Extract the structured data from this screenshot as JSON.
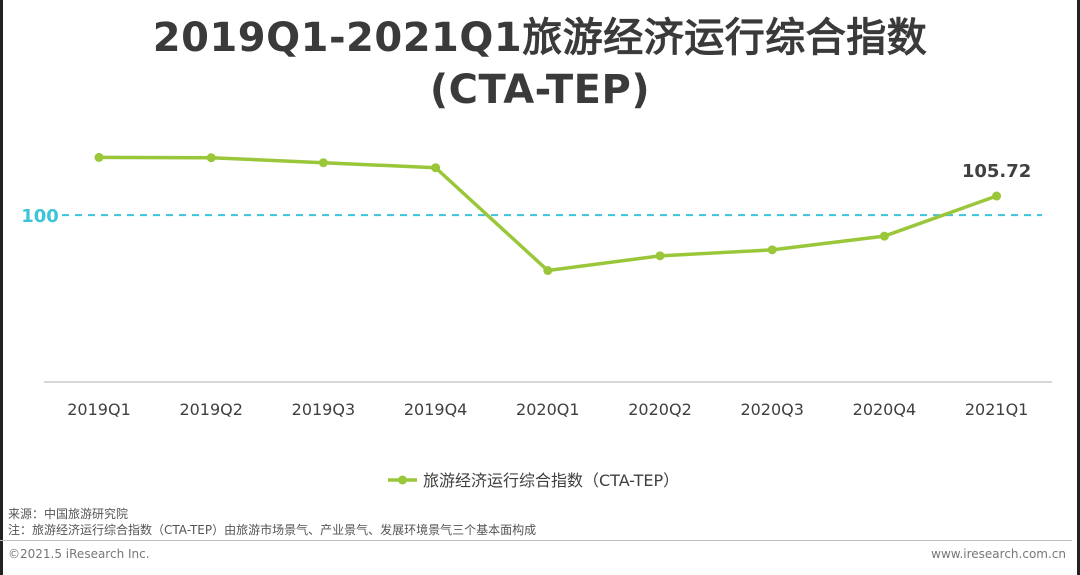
{
  "title": {
    "line1": "2019Q1-2021Q1旅游经济运行综合指数",
    "line2": "(CTA-TEP)"
  },
  "chart_data": {
    "type": "line",
    "categories": [
      "2019Q1",
      "2019Q2",
      "2019Q3",
      "2019Q4",
      "2020Q1",
      "2020Q2",
      "2020Q3",
      "2020Q4",
      "2021Q1"
    ],
    "series": [
      {
        "name": "旅游经济运行综合指数（CTA-TEP）",
        "values": [
          117.3,
          117.2,
          115.7,
          114.2,
          83.4,
          87.8,
          89.6,
          93.7,
          105.72
        ],
        "color": "#9ac73a"
      }
    ],
    "reference_line": {
      "value": 100,
      "label": "100",
      "color": "#3cc4d8",
      "style": "dashed"
    },
    "data_labels": [
      {
        "index": 8,
        "text": "105.72"
      }
    ],
    "ylim": [
      50,
      130
    ],
    "grid": false,
    "legend_position": "bottom-center",
    "xlabel": "",
    "ylabel": ""
  },
  "source": {
    "line1": "来源：中国旅游研究院",
    "line2": "注：旅游经济运行综合指数（CTA-TEP）由旅游市场景气、产业景气、发展环境景气三个基本面构成"
  },
  "footer": {
    "left": "©2021.5 iResearch Inc.",
    "right": "www.iresearch.com.cn"
  }
}
